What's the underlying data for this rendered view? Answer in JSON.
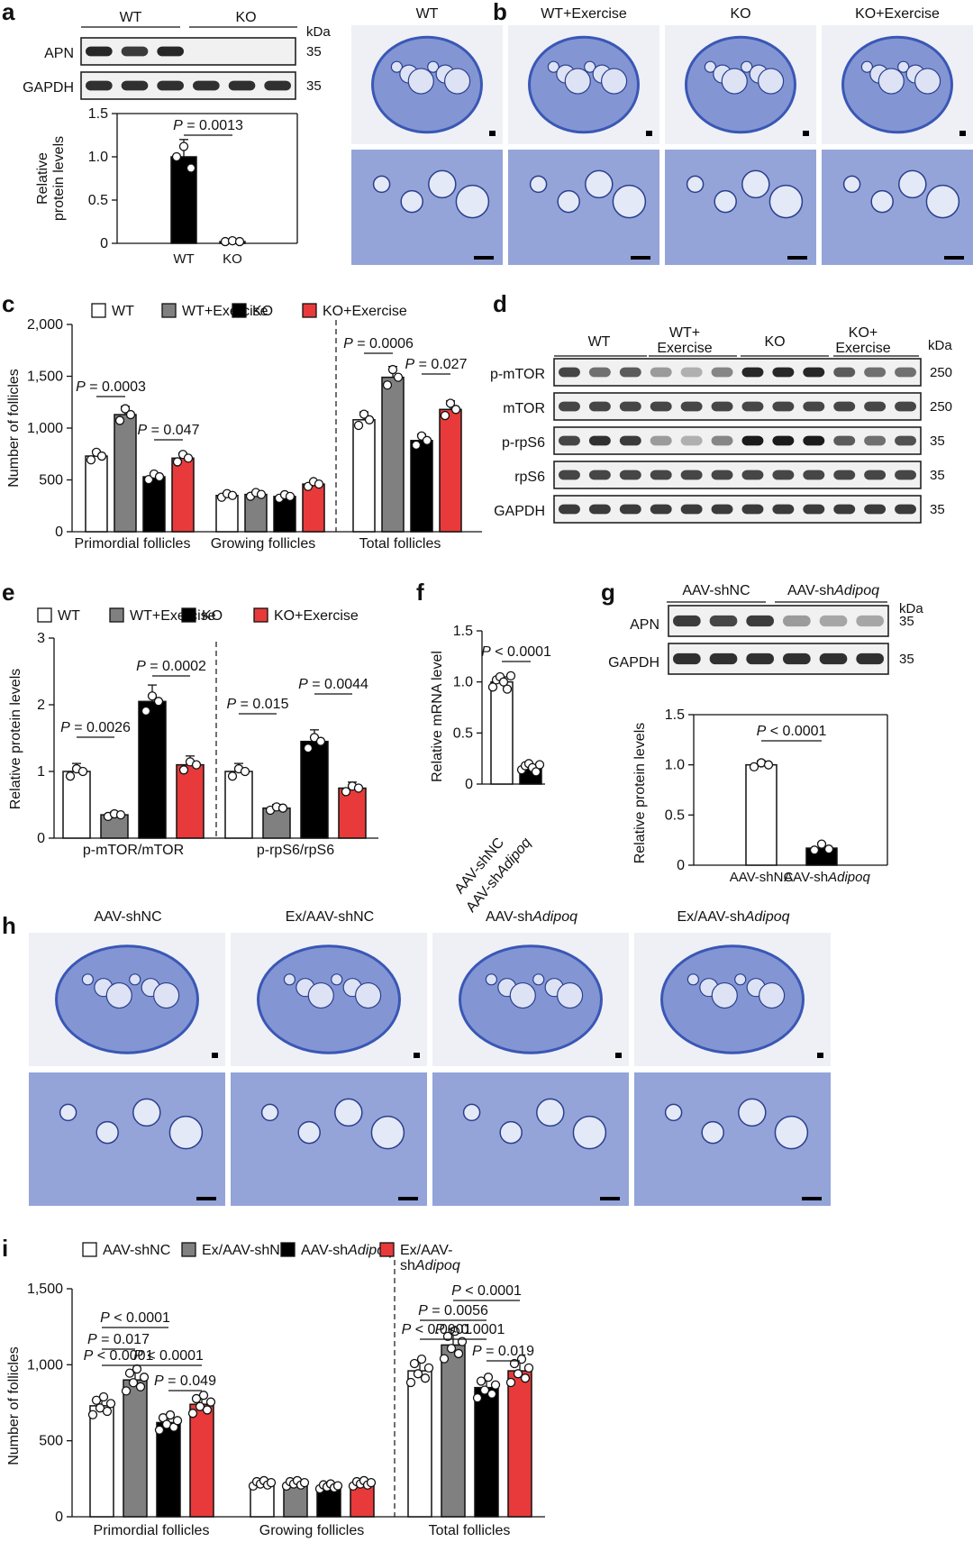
{
  "panel_labels": [
    "a",
    "b",
    "c",
    "d",
    "e",
    "f",
    "g",
    "h",
    "i"
  ],
  "colors": {
    "wt": "#ffffff",
    "wt_ex": "#808080",
    "ko": "#000000",
    "ko_ex": "#e83a3a",
    "tissue": "#4a66c0"
  },
  "a": {
    "groups": [
      "WT",
      "KO"
    ],
    "kda": "kDa",
    "rows": [
      {
        "name": "APN",
        "kda": "35"
      },
      {
        "name": "GAPDH",
        "kda": "35"
      }
    ],
    "chart": {
      "ylabel_line1": "Relative",
      "ylabel_line2": "protein levels",
      "yticks": [
        "0",
        "0.5",
        "1.0",
        "1.5"
      ],
      "categories": [
        "WT",
        "KO"
      ],
      "p": "P = 0.0013"
    }
  },
  "b": {
    "columns": [
      "WT",
      "WT+Exercise",
      "KO",
      "KO+Exercise"
    ]
  },
  "c": {
    "legend": [
      "WT",
      "WT+Exercise",
      "KO",
      "KO+Exercise"
    ],
    "ylabel": "Number of follicles",
    "yticks": [
      "0",
      "500",
      "1,000",
      "1,500",
      "2,000"
    ],
    "groups": [
      "Primordial follicles",
      "Growing follicles",
      "Total follicles"
    ],
    "p": [
      "P = 0.0003",
      "P = 0.047",
      "P = 0.0006",
      "P = 0.027"
    ]
  },
  "d": {
    "headers": [
      "WT",
      "WT+\nExercise",
      "KO",
      "KO+\nExercise"
    ],
    "kda": "kDa",
    "rows": [
      {
        "name": "p-mTOR",
        "kda": "250"
      },
      {
        "name": "mTOR",
        "kda": "250"
      },
      {
        "name": "p-rpS6",
        "kda": "35"
      },
      {
        "name": "rpS6",
        "kda": "35"
      },
      {
        "name": "GAPDH",
        "kda": "35"
      }
    ]
  },
  "e": {
    "legend": [
      "WT",
      "WT+Exercise",
      "KO",
      "KO+Exercise"
    ],
    "ylabel": "Relative protein levels",
    "yticks": [
      "0",
      "1",
      "2",
      "3"
    ],
    "groups": [
      "p-mTOR/mTOR",
      "p-rpS6/rpS6"
    ],
    "p": [
      "P = 0.0026",
      "P = 0.0002",
      "P = 0.015",
      "P = 0.0044"
    ]
  },
  "f": {
    "ylabel": "Relative mRNA level",
    "yticks": [
      "0",
      "0.5",
      "1.0",
      "1.5"
    ],
    "categories": [
      "AAV-shNC",
      "AAV-shAdipoq"
    ],
    "p": "P < 0.0001"
  },
  "g": {
    "groups": [
      "AAV-shNC",
      "AAV-shAdipoq"
    ],
    "kda": "kDa",
    "rows": [
      {
        "name": "APN",
        "kda": "35"
      },
      {
        "name": "GAPDH",
        "kda": "35"
      }
    ],
    "chart": {
      "ylabel": "Relative protein levels",
      "yticks": [
        "0",
        "0.5",
        "1.0",
        "1.5"
      ],
      "categories": [
        "AAV-shNC",
        "AAV-shAdipoq"
      ],
      "p": "P < 0.0001"
    }
  },
  "h": {
    "columns": [
      "AAV-shNC",
      "Ex/AAV-shNC",
      "AAV-shAdipoq",
      "Ex/AAV-shAdipoq"
    ]
  },
  "i": {
    "legend": [
      "AAV-shNC",
      "Ex/AAV-shNC",
      "AAV-shAdipoq",
      "Ex/AAV-\nshAdipoq"
    ],
    "ylabel": "Number of follicles",
    "yticks": [
      "0",
      "500",
      "1,000",
      "1,500"
    ],
    "groups": [
      "Primordial follicles",
      "Growing follicles",
      "Total follicles"
    ],
    "p": [
      "P < 0.0001",
      "P = 0.017",
      "P < 0.0001",
      "P < 0.0001",
      "P = 0.049",
      "P < 0.0001",
      "P = 0.0056",
      "P < 0.0001",
      "P < 0.0001",
      "P = 0.019"
    ]
  },
  "chart_data": [
    {
      "panel": "a",
      "type": "bar",
      "categories": [
        "WT",
        "KO"
      ],
      "values": [
        1.0,
        0.02
      ],
      "errors": [
        0.2,
        0.02
      ],
      "ylim": [
        0,
        1.5
      ],
      "ylabel": "Relative protein levels"
    },
    {
      "panel": "c",
      "type": "bar",
      "categories": [
        "Primordial follicles",
        "Growing follicles",
        "Total follicles"
      ],
      "ylim": [
        0,
        2000
      ],
      "ylabel": "Number of follicles",
      "series": [
        {
          "name": "WT",
          "values": [
            730,
            350,
            1080
          ]
        },
        {
          "name": "WT+Exercise",
          "values": [
            1130,
            360,
            1490
          ]
        },
        {
          "name": "KO",
          "values": [
            530,
            340,
            880
          ]
        },
        {
          "name": "KO+Exercise",
          "values": [
            710,
            460,
            1180
          ]
        }
      ]
    },
    {
      "panel": "e",
      "type": "bar",
      "categories": [
        "p-mTOR/mTOR",
        "p-rpS6/rpS6"
      ],
      "ylim": [
        0,
        3
      ],
      "ylabel": "Relative protein levels",
      "series": [
        {
          "name": "WT",
          "values": [
            1.0,
            1.0
          ]
        },
        {
          "name": "WT+Exercise",
          "values": [
            0.35,
            0.45
          ]
        },
        {
          "name": "KO",
          "values": [
            2.05,
            1.45
          ]
        },
        {
          "name": "KO+Exercise",
          "values": [
            1.1,
            0.75
          ]
        }
      ]
    },
    {
      "panel": "f",
      "type": "bar",
      "categories": [
        "AAV-shNC",
        "AAV-shAdipoq"
      ],
      "values": [
        1.0,
        0.17
      ],
      "ylim": [
        0,
        1.5
      ],
      "ylabel": "Relative mRNA level"
    },
    {
      "panel": "g",
      "type": "bar",
      "categories": [
        "AAV-shNC",
        "AAV-shAdipoq"
      ],
      "values": [
        1.0,
        0.17
      ],
      "ylim": [
        0,
        1.5
      ],
      "ylabel": "Relative protein levels"
    },
    {
      "panel": "i",
      "type": "bar",
      "categories": [
        "Primordial follicles",
        "Growing follicles",
        "Total follicles"
      ],
      "ylim": [
        0,
        1500
      ],
      "ylabel": "Number of follicles",
      "series": [
        {
          "name": "AAV-shNC",
          "values": [
            730,
            220,
            960
          ]
        },
        {
          "name": "Ex/AAV-shNC",
          "values": [
            900,
            220,
            1130
          ]
        },
        {
          "name": "AAV-shAdipoq",
          "values": [
            620,
            200,
            850
          ]
        },
        {
          "name": "Ex/AAV-shAdipoq",
          "values": [
            740,
            220,
            960
          ]
        }
      ]
    }
  ]
}
